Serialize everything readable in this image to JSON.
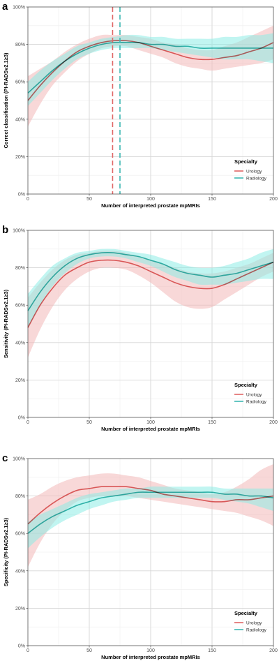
{
  "colors": {
    "urology": "#E06666",
    "radiology": "#3DB8B2",
    "urology_band": "#F2B8B8",
    "radiology_band": "#8EEDE6",
    "grid_major": "#D6D6D6",
    "grid_minor": "#EEEEEE",
    "panel_border": "#333333"
  },
  "chart_data": [
    {
      "type": "line",
      "panel_label": "a",
      "xlabel": "Number of interpreted prostate mpMRIs",
      "ylabel": "Correct classification (PI-RADSv2.1≥3)",
      "xlim": [
        0,
        200
      ],
      "ylim": [
        0,
        1
      ],
      "x_ticks": [
        0,
        50,
        100,
        150,
        200
      ],
      "y_ticks": [
        "0%",
        "20%",
        "40%",
        "60%",
        "80%",
        "100%"
      ],
      "grid": true,
      "legend": {
        "title": "Specialty",
        "position": "bottom-right",
        "entries": [
          "Urology",
          "Radiology"
        ]
      },
      "vlines": [
        {
          "series": "Urology",
          "x": 69
        },
        {
          "series": "Radiology",
          "x": 75
        }
      ],
      "series": [
        {
          "name": "Urology",
          "x": [
            0,
            10,
            20,
            30,
            40,
            50,
            60,
            70,
            80,
            90,
            100,
            110,
            120,
            130,
            140,
            150,
            160,
            170,
            180,
            190,
            200
          ],
          "values": [
            0.5,
            0.58,
            0.65,
            0.71,
            0.76,
            0.79,
            0.81,
            0.82,
            0.82,
            0.81,
            0.79,
            0.77,
            0.75,
            0.73,
            0.72,
            0.72,
            0.73,
            0.74,
            0.76,
            0.78,
            0.81
          ],
          "lower": [
            0.36,
            0.48,
            0.58,
            0.65,
            0.71,
            0.75,
            0.78,
            0.79,
            0.79,
            0.77,
            0.75,
            0.73,
            0.7,
            0.68,
            0.67,
            0.66,
            0.67,
            0.68,
            0.69,
            0.7,
            0.72
          ],
          "upper": [
            0.63,
            0.67,
            0.71,
            0.76,
            0.8,
            0.83,
            0.85,
            0.85,
            0.85,
            0.84,
            0.83,
            0.81,
            0.8,
            0.78,
            0.77,
            0.77,
            0.79,
            0.81,
            0.84,
            0.87,
            0.9
          ]
        },
        {
          "name": "Radiology",
          "x": [
            0,
            10,
            20,
            30,
            40,
            50,
            60,
            70,
            80,
            90,
            100,
            110,
            120,
            130,
            140,
            150,
            160,
            170,
            180,
            190,
            200
          ],
          "values": [
            0.54,
            0.6,
            0.66,
            0.71,
            0.75,
            0.78,
            0.8,
            0.81,
            0.81,
            0.81,
            0.8,
            0.8,
            0.79,
            0.79,
            0.78,
            0.78,
            0.78,
            0.78,
            0.78,
            0.78,
            0.78
          ],
          "lower": [
            0.47,
            0.54,
            0.61,
            0.67,
            0.72,
            0.75,
            0.77,
            0.78,
            0.78,
            0.78,
            0.78,
            0.77,
            0.76,
            0.75,
            0.74,
            0.73,
            0.72,
            0.72,
            0.72,
            0.71,
            0.7
          ],
          "upper": [
            0.6,
            0.66,
            0.71,
            0.75,
            0.79,
            0.81,
            0.83,
            0.84,
            0.85,
            0.85,
            0.84,
            0.84,
            0.83,
            0.83,
            0.83,
            0.83,
            0.84,
            0.84,
            0.85,
            0.85,
            0.86
          ]
        }
      ]
    },
    {
      "type": "line",
      "panel_label": "b",
      "xlabel": "Number of interpreted prostate mpMRIs",
      "ylabel": "Sensitivity (PI-RADSv2.1≥3)",
      "xlim": [
        0,
        200
      ],
      "ylim": [
        0,
        1
      ],
      "x_ticks": [
        0,
        50,
        100,
        150,
        200
      ],
      "y_ticks": [
        "0%",
        "20%",
        "40%",
        "60%",
        "80%",
        "100%"
      ],
      "grid": true,
      "legend": {
        "title": "Specialty",
        "position": "bottom-right",
        "entries": [
          "Urology",
          "Radiology"
        ]
      },
      "vlines": [],
      "series": [
        {
          "name": "Urology",
          "x": [
            0,
            10,
            20,
            30,
            40,
            50,
            60,
            70,
            80,
            90,
            100,
            110,
            120,
            130,
            140,
            150,
            160,
            170,
            180,
            190,
            200
          ],
          "values": [
            0.48,
            0.6,
            0.69,
            0.76,
            0.8,
            0.83,
            0.84,
            0.84,
            0.83,
            0.81,
            0.78,
            0.75,
            0.72,
            0.7,
            0.69,
            0.69,
            0.71,
            0.74,
            0.77,
            0.8,
            0.83
          ],
          "lower": [
            0.32,
            0.47,
            0.59,
            0.68,
            0.74,
            0.78,
            0.8,
            0.8,
            0.79,
            0.76,
            0.72,
            0.67,
            0.62,
            0.59,
            0.58,
            0.59,
            0.63,
            0.67,
            0.71,
            0.75,
            0.78
          ],
          "upper": [
            0.64,
            0.72,
            0.79,
            0.84,
            0.87,
            0.88,
            0.89,
            0.89,
            0.88,
            0.86,
            0.84,
            0.82,
            0.8,
            0.78,
            0.77,
            0.77,
            0.78,
            0.8,
            0.82,
            0.85,
            0.88
          ]
        },
        {
          "name": "Radiology",
          "x": [
            0,
            10,
            20,
            30,
            40,
            50,
            60,
            70,
            80,
            90,
            100,
            110,
            120,
            130,
            140,
            150,
            160,
            170,
            180,
            190,
            200
          ],
          "values": [
            0.57,
            0.67,
            0.75,
            0.81,
            0.85,
            0.87,
            0.88,
            0.88,
            0.87,
            0.86,
            0.84,
            0.82,
            0.79,
            0.77,
            0.76,
            0.75,
            0.76,
            0.77,
            0.79,
            0.81,
            0.83
          ],
          "lower": [
            0.48,
            0.6,
            0.7,
            0.77,
            0.82,
            0.85,
            0.86,
            0.86,
            0.85,
            0.83,
            0.81,
            0.78,
            0.75,
            0.73,
            0.71,
            0.71,
            0.71,
            0.72,
            0.73,
            0.74,
            0.74
          ],
          "upper": [
            0.66,
            0.74,
            0.81,
            0.85,
            0.88,
            0.89,
            0.9,
            0.9,
            0.89,
            0.88,
            0.87,
            0.85,
            0.83,
            0.81,
            0.8,
            0.8,
            0.81,
            0.83,
            0.85,
            0.88,
            0.9
          ]
        }
      ]
    },
    {
      "type": "line",
      "panel_label": "c",
      "xlabel": "Number of interpreted prostate mpMRIs",
      "ylabel": "Specificity (PI-RADSv2.1≥3)",
      "xlim": [
        0,
        200
      ],
      "ylim": [
        0,
        1
      ],
      "x_ticks": [
        0,
        50,
        100,
        150,
        200
      ],
      "y_ticks": [
        "0%",
        "20%",
        "40%",
        "60%",
        "80%",
        "100%"
      ],
      "grid": true,
      "legend": {
        "title": "Specialty",
        "position": "bottom-right",
        "entries": [
          "Urology",
          "Radiology"
        ]
      },
      "vlines": [],
      "series": [
        {
          "name": "Urology",
          "x": [
            0,
            10,
            20,
            30,
            40,
            50,
            60,
            70,
            80,
            90,
            100,
            110,
            120,
            130,
            140,
            150,
            160,
            170,
            180,
            190,
            200
          ],
          "values": [
            0.65,
            0.71,
            0.76,
            0.8,
            0.83,
            0.84,
            0.85,
            0.85,
            0.85,
            0.84,
            0.83,
            0.81,
            0.8,
            0.79,
            0.78,
            0.77,
            0.77,
            0.78,
            0.78,
            0.79,
            0.8
          ],
          "lower": [
            0.42,
            0.55,
            0.65,
            0.72,
            0.77,
            0.79,
            0.8,
            0.8,
            0.8,
            0.79,
            0.78,
            0.77,
            0.76,
            0.75,
            0.74,
            0.73,
            0.72,
            0.71,
            0.69,
            0.67,
            0.64
          ],
          "upper": [
            0.78,
            0.81,
            0.85,
            0.88,
            0.9,
            0.91,
            0.92,
            0.92,
            0.91,
            0.9,
            0.88,
            0.86,
            0.84,
            0.83,
            0.82,
            0.81,
            0.82,
            0.85,
            0.89,
            0.94,
            0.97
          ]
        },
        {
          "name": "Radiology",
          "x": [
            0,
            10,
            20,
            30,
            40,
            50,
            60,
            70,
            80,
            90,
            100,
            110,
            120,
            130,
            140,
            150,
            160,
            170,
            180,
            190,
            200
          ],
          "values": [
            0.6,
            0.65,
            0.69,
            0.72,
            0.75,
            0.77,
            0.79,
            0.8,
            0.81,
            0.82,
            0.82,
            0.82,
            0.82,
            0.82,
            0.82,
            0.82,
            0.81,
            0.81,
            0.8,
            0.8,
            0.79
          ],
          "lower": [
            0.52,
            0.58,
            0.63,
            0.67,
            0.7,
            0.73,
            0.75,
            0.77,
            0.78,
            0.79,
            0.79,
            0.79,
            0.79,
            0.79,
            0.79,
            0.79,
            0.78,
            0.77,
            0.76,
            0.74,
            0.72
          ],
          "upper": [
            0.66,
            0.7,
            0.73,
            0.76,
            0.79,
            0.81,
            0.82,
            0.83,
            0.84,
            0.84,
            0.85,
            0.85,
            0.85,
            0.85,
            0.85,
            0.85,
            0.84,
            0.84,
            0.84,
            0.84,
            0.84
          ]
        }
      ]
    }
  ]
}
